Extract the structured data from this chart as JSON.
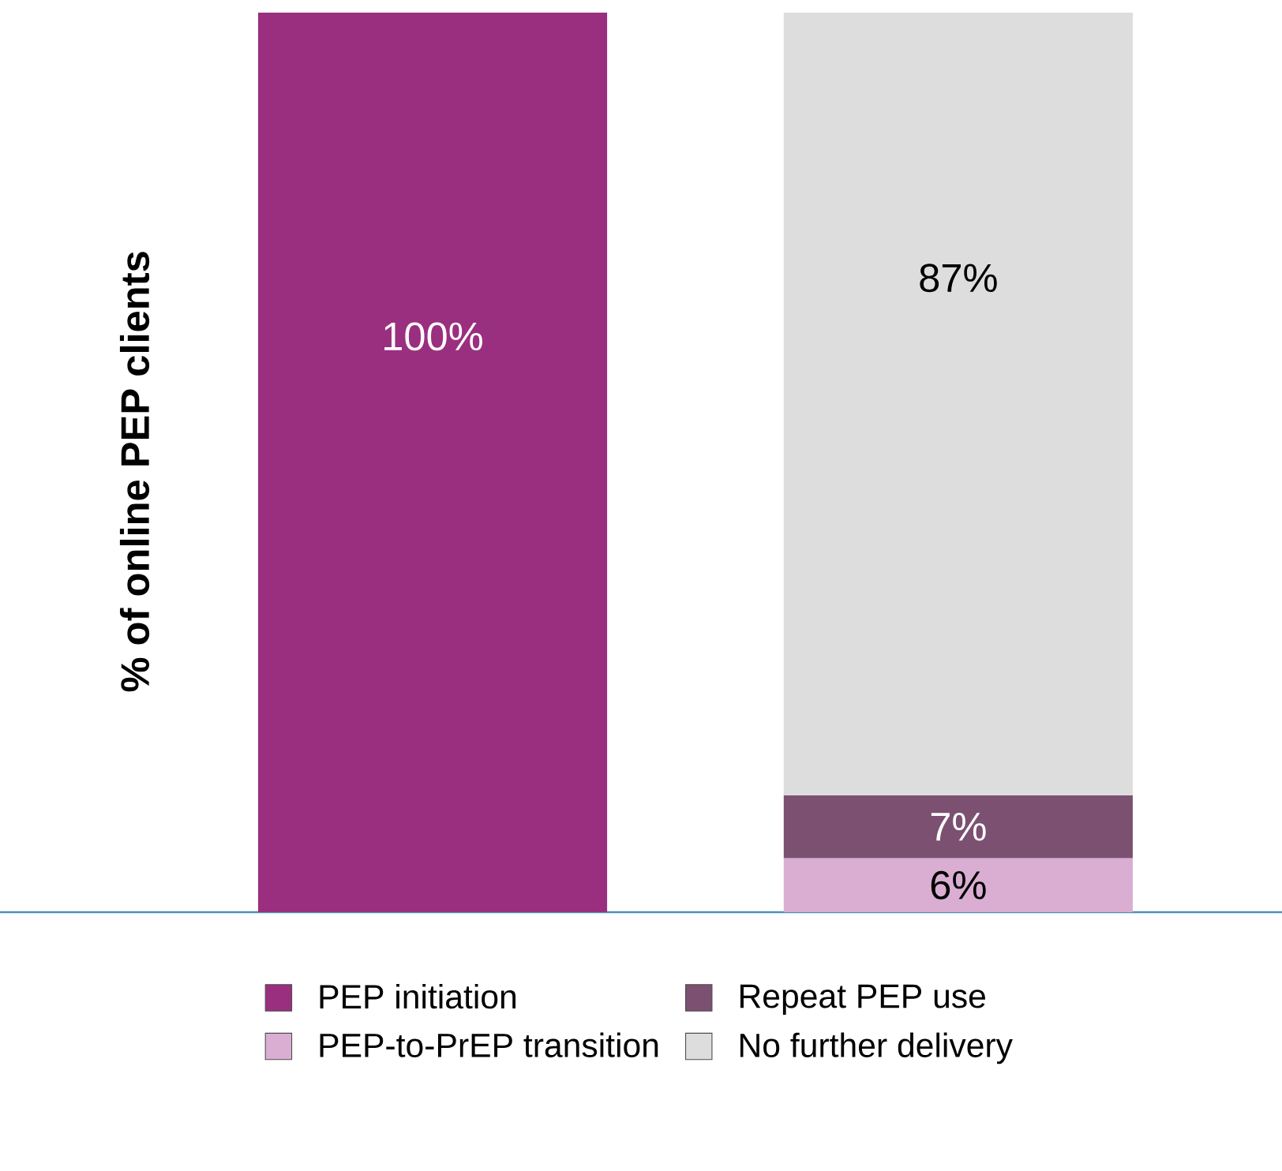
{
  "chart_data": {
    "type": "bar",
    "stacked": true,
    "ylabel": "% of online PEP clients",
    "categories": [
      null,
      null
    ],
    "ylim": [
      0,
      100
    ],
    "legend": "bottom",
    "series": [
      {
        "name": "PEP initiation",
        "color": "#9a2f80",
        "values": [
          100,
          null
        ],
        "value_labels": [
          "100%",
          null
        ]
      },
      {
        "name": "PEP-to-PrEP transition",
        "color": "#d9aed2",
        "values": [
          null,
          6
        ],
        "value_labels": [
          null,
          "6%"
        ]
      },
      {
        "name": "Repeat PEP use",
        "color": "#7c5070",
        "values": [
          null,
          7
        ],
        "value_labels": [
          null,
          "7%"
        ]
      },
      {
        "name": "No further delivery",
        "color": "#dddddd",
        "values": [
          null,
          87
        ],
        "value_labels": [
          null,
          "87%"
        ]
      }
    ]
  }
}
